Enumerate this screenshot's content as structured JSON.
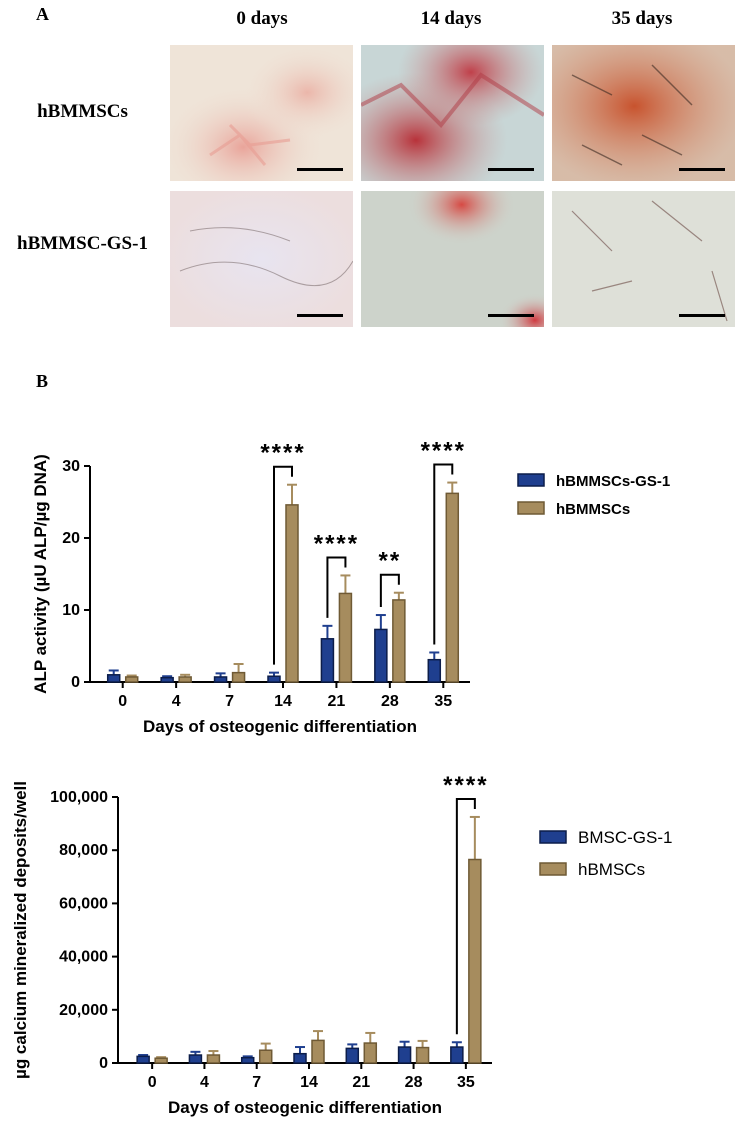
{
  "panel_a": {
    "label": "A",
    "columns": [
      "0 days",
      "14 days",
      "35 days"
    ],
    "rows": [
      "hBMMSCs",
      "hBMMSC-GS-1"
    ]
  },
  "panel_b": {
    "label": "B"
  },
  "chart_data": [
    {
      "type": "bar",
      "title": "",
      "xlabel": "Days of osteogenic differentiation",
      "ylabel": "ALP activity (µU ALP/µg DNA)",
      "categories": [
        "0",
        "4",
        "7",
        "14",
        "21",
        "28",
        "35"
      ],
      "ylim": [
        0,
        30
      ],
      "yticks": [
        "0",
        "10",
        "20",
        "30"
      ],
      "grid": false,
      "legend_position": "right",
      "series": [
        {
          "name": "hBMMSCs-GS-1",
          "color": "#1f3f8f",
          "values": [
            1.0,
            0.6,
            0.7,
            0.8,
            6.0,
            7.3,
            3.1
          ],
          "errors": [
            0.6,
            0.2,
            0.5,
            0.5,
            1.8,
            2.0,
            1.0
          ]
        },
        {
          "name": "hBMMSCs",
          "color": "#a68c5e",
          "values": [
            0.7,
            0.7,
            1.3,
            24.6,
            12.3,
            11.4,
            26.2
          ],
          "errors": [
            0.2,
            0.3,
            1.2,
            2.8,
            2.5,
            1.0,
            1.5
          ]
        }
      ],
      "significance": [
        {
          "category": "14",
          "label": "****"
        },
        {
          "category": "21",
          "label": "****"
        },
        {
          "category": "28",
          "label": "**"
        },
        {
          "category": "35",
          "label": "****"
        }
      ]
    },
    {
      "type": "bar",
      "title": "",
      "xlabel": "Days of osteogenic differentiation",
      "ylabel": "µg calcium mineralized deposits/well",
      "categories": [
        "0",
        "4",
        "7",
        "14",
        "21",
        "28",
        "35"
      ],
      "ylim": [
        0,
        100000
      ],
      "yticks": [
        "0",
        "20,000",
        "40,000",
        "60,000",
        "80,000",
        "100,000"
      ],
      "grid": false,
      "legend_position": "right",
      "series": [
        {
          "name": "BMSC-GS-1",
          "color": "#1f3f8f",
          "values": [
            2500,
            3000,
            2000,
            3500,
            5500,
            6000,
            6000
          ],
          "errors": [
            500,
            1200,
            500,
            2500,
            1500,
            2000,
            1800
          ]
        },
        {
          "name": "hBMSCs",
          "color": "#a68c5e",
          "values": [
            1800,
            3000,
            4800,
            8500,
            7500,
            5800,
            76500
          ],
          "errors": [
            400,
            1500,
            2500,
            3500,
            3800,
            2500,
            16000
          ]
        }
      ],
      "significance": [
        {
          "category": "35",
          "label": "****"
        }
      ]
    }
  ]
}
